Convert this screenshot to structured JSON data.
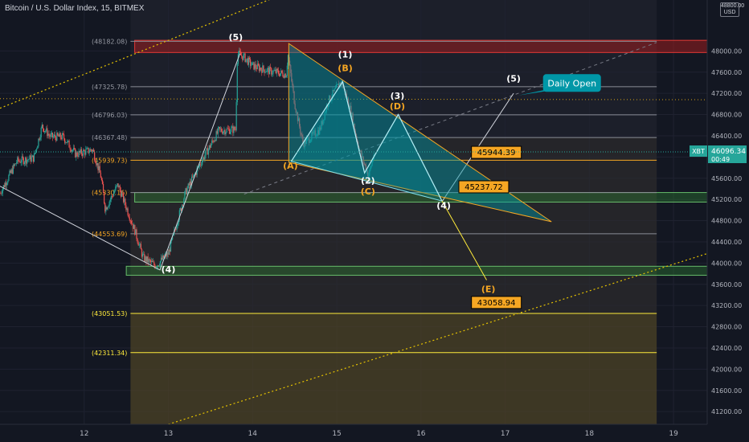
{
  "header": {
    "title": "Bitcoin / U.S. Dollar Index, 15, BITMEX"
  },
  "currency_badge": [
    "48800.00",
    "USD"
  ],
  "colors": {
    "bg": "#131722",
    "grid": "#1f2230",
    "up": "#26a69a",
    "down": "#ef5350",
    "fib_line": "#787b86",
    "orange": "#f5a623",
    "yellow": "#ffeb3b",
    "white": "#d1d4dc",
    "red_zone": "#b71c1c",
    "green_zone": "#2e7d32",
    "teal": "#0097a7"
  },
  "chart_data": {
    "type": "candlestick",
    "symbol": "XBT",
    "exchange": "BITMEX",
    "timeframe": "15",
    "title": "Bitcoin / U.S. Dollar Index, 15, BITMEX",
    "xlim": [
      11.0,
      19.4
    ],
    "ylim": [
      40960,
      48960
    ],
    "x_ticks": [
      "12",
      "13",
      "14",
      "15",
      "16",
      "17",
      "18",
      "19"
    ],
    "y_ticks": [
      "48000.00",
      "47600.00",
      "47200.00",
      "46800.00",
      "46400.00",
      "46000.00",
      "45600.00",
      "45200.00",
      "44800.00",
      "44400.00",
      "44000.00",
      "43600.00",
      "43200.00",
      "42800.00",
      "42400.00",
      "42000.00",
      "41600.00",
      "41200.00"
    ],
    "last_price": {
      "symbol": "XBT",
      "value": "46096.34",
      "countdown": "00:49",
      "price": 46096.34
    },
    "price_path": [
      [
        11.0,
        45320
      ],
      [
        11.2,
        45920
      ],
      [
        11.4,
        45980
      ],
      [
        11.5,
        46580
      ],
      [
        11.6,
        46380
      ],
      [
        11.75,
        46380
      ],
      [
        11.9,
        46050
      ],
      [
        12.1,
        46140
      ],
      [
        12.2,
        45620
      ],
      [
        12.25,
        45020
      ],
      [
        12.4,
        45480
      ],
      [
        12.6,
        44620
      ],
      [
        12.7,
        44100
      ],
      [
        12.85,
        43950
      ],
      [
        13.0,
        44180
      ],
      [
        13.2,
        45320
      ],
      [
        13.4,
        45940
      ],
      [
        13.6,
        46500
      ],
      [
        13.8,
        46520
      ],
      [
        13.82,
        47950
      ],
      [
        13.9,
        47880
      ],
      [
        14.0,
        47720
      ],
      [
        14.2,
        47620
      ],
      [
        14.4,
        47560
      ],
      [
        14.42,
        47940
      ],
      [
        14.5,
        47010
      ],
      [
        14.6,
        46250
      ],
      [
        14.8,
        46520
      ],
      [
        14.9,
        47060
      ],
      [
        15.05,
        47420
      ],
      [
        15.15,
        46980
      ],
      [
        15.25,
        46250
      ],
      [
        15.3,
        45980
      ],
      [
        15.38,
        45650
      ],
      [
        15.45,
        46120
      ]
    ],
    "fib_levels": [
      {
        "price": 48182.08,
        "label": "(48182.08)"
      },
      {
        "price": 47325.78,
        "label": "(47325.78)"
      },
      {
        "price": 46796.03,
        "label": "(46796.03)"
      },
      {
        "price": 46367.48,
        "label": "(46367.48)"
      },
      {
        "price": 45939.73,
        "label": "(45939.73)"
      },
      {
        "price": 45330.16,
        "label": "(45330.16)"
      },
      {
        "price": 44553.69,
        "label": "(44553.69)"
      },
      {
        "price": 43051.53,
        "label": "(43051.53)"
      },
      {
        "price": 42311.34,
        "label": "(42311.34)"
      }
    ],
    "zones": [
      {
        "name": "resistance",
        "from": 47970,
        "to": 48200,
        "x_from": 12.6,
        "x_to": 19.4
      },
      {
        "name": "support-upper",
        "from": 45150,
        "to": 45330,
        "x_from": 12.6,
        "x_to": 19.4
      },
      {
        "name": "support-lower",
        "from": 43770,
        "to": 43940,
        "x_from": 12.5,
        "x_to": 19.4
      }
    ],
    "wave_labels": [
      {
        "text": "(5)",
        "x": 13.8,
        "price": 48200,
        "color": "white"
      },
      {
        "text": "(4)",
        "x": 13.0,
        "price": 43820,
        "color": "white"
      },
      {
        "text": "(1)",
        "x": 15.1,
        "price": 47880,
        "color": "white"
      },
      {
        "text": "(B)",
        "x": 15.1,
        "price": 47620,
        "color": "yellow"
      },
      {
        "text": "(A)",
        "x": 14.45,
        "price": 45780,
        "color": "yellow"
      },
      {
        "text": "(2)",
        "x": 15.37,
        "price": 45500,
        "color": "white"
      },
      {
        "text": "(C)",
        "x": 15.37,
        "price": 45290,
        "color": "yellow"
      },
      {
        "text": "(3)",
        "x": 15.72,
        "price": 47100,
        "color": "white"
      },
      {
        "text": "(D)",
        "x": 15.72,
        "price": 46900,
        "color": "yellow"
      },
      {
        "text": "(4)",
        "x": 16.27,
        "price": 45030,
        "color": "white"
      },
      {
        "text": "(5)",
        "x": 17.1,
        "price": 47420,
        "color": "white"
      },
      {
        "text": "(E)",
        "x": 16.8,
        "price": 43450,
        "color": "yellow"
      }
    ],
    "price_callouts": [
      {
        "text": "45944.39",
        "x": 16.6,
        "price": 46080
      },
      {
        "text": "45237.72",
        "x": 16.45,
        "price": 45430
      },
      {
        "text": "43058.94",
        "x": 16.6,
        "price": 43250
      }
    ],
    "annotation": {
      "text": "Daily Open"
    }
  }
}
